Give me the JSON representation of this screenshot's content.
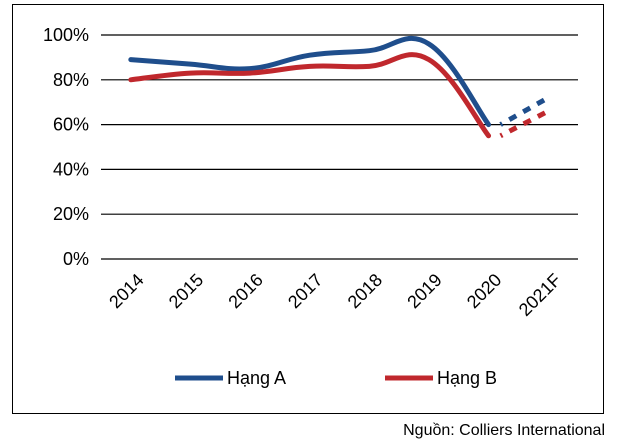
{
  "source_note": "Nguồn: Colliers International",
  "colors": {
    "series_a": "#1F4E8C",
    "series_b": "#C0282D",
    "grid": "#000000"
  },
  "chart_data": {
    "type": "line",
    "categories": [
      "2014",
      "2015",
      "2016",
      "2017",
      "2018",
      "2019",
      "2020",
      "2021F"
    ],
    "y_tick_labels": [
      "100%",
      "80%",
      "60%",
      "40%",
      "20%",
      "0%"
    ],
    "ylim": [
      0,
      100
    ],
    "grid": true,
    "legend_position": "bottom",
    "series": [
      {
        "name": "Hạng A",
        "values": [
          89,
          87,
          85,
          91,
          93,
          96,
          60,
          72
        ],
        "projected_segment": [
          "2020",
          "2021F"
        ]
      },
      {
        "name": "Hạng B",
        "values": [
          80,
          83,
          83,
          86,
          86,
          89,
          55,
          66
        ],
        "projected_segment": [
          "2020",
          "2021F"
        ]
      }
    ]
  }
}
